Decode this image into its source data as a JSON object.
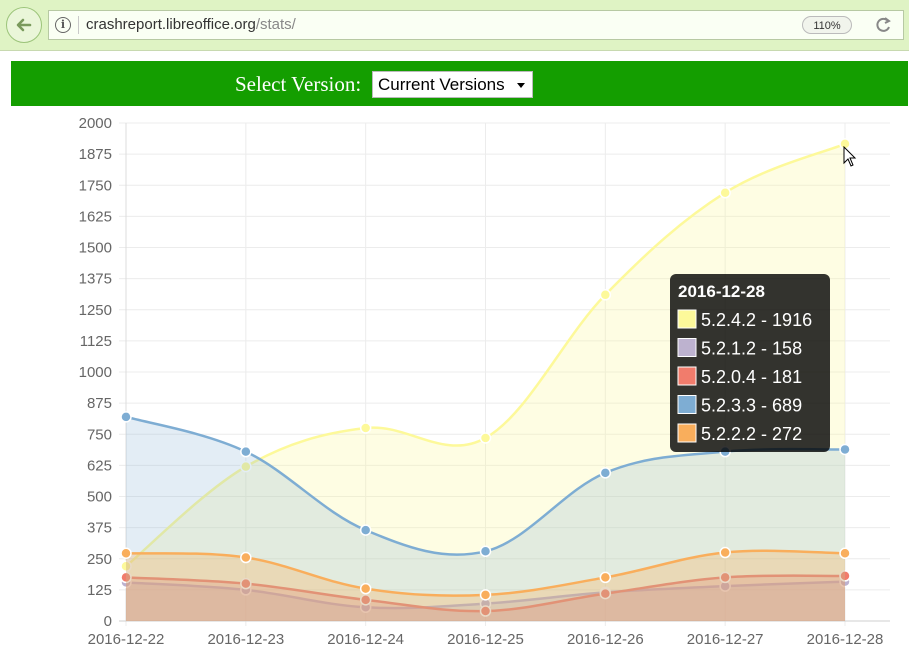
{
  "browser": {
    "url_host": "crashreport.libreoffice.org",
    "url_path": "/stats/",
    "zoom": "110%"
  },
  "controls": {
    "version_label": "Select Version:",
    "version_selected": "Current Versions"
  },
  "chart_data": {
    "type": "area",
    "categories": [
      "2016-12-22",
      "2016-12-23",
      "2016-12-24",
      "2016-12-25",
      "2016-12-26",
      "2016-12-27",
      "2016-12-28"
    ],
    "ylim": [
      0,
      2000
    ],
    "yticks": [
      0,
      125,
      250,
      375,
      500,
      625,
      750,
      875,
      1000,
      1125,
      1250,
      1375,
      1500,
      1625,
      1750,
      1875,
      2000
    ],
    "grid": true,
    "series": [
      {
        "name": "5.2.4.2",
        "color": "#fdf99a",
        "values": [
          220,
          620,
          775,
          735,
          1310,
          1720,
          1916
        ]
      },
      {
        "name": "5.2.1.2",
        "color": "#bdb2cf",
        "values": [
          155,
          125,
          55,
          70,
          115,
          140,
          158
        ]
      },
      {
        "name": "5.2.0.4",
        "color": "#f17c6c",
        "values": [
          175,
          150,
          85,
          40,
          110,
          175,
          181
        ]
      },
      {
        "name": "5.2.3.3",
        "color": "#7eadd3",
        "values": [
          820,
          680,
          365,
          280,
          595,
          680,
          689
        ]
      },
      {
        "name": "5.2.2.2",
        "color": "#f9ae5c",
        "values": [
          272,
          255,
          130,
          105,
          175,
          275,
          272
        ]
      }
    ],
    "tooltip": {
      "title": "2016-12-28",
      "items": [
        {
          "label": "5.2.4.2 - 1916",
          "color": "#fdf99a"
        },
        {
          "label": "5.2.1.2 - 158",
          "color": "#bdb2cf"
        },
        {
          "label": "5.2.0.4 - 181",
          "color": "#f17c6c"
        },
        {
          "label": "5.2.3.3 - 689",
          "color": "#7eadd3"
        },
        {
          "label": "5.2.2.2 - 272",
          "color": "#f9ae5c"
        }
      ]
    }
  }
}
